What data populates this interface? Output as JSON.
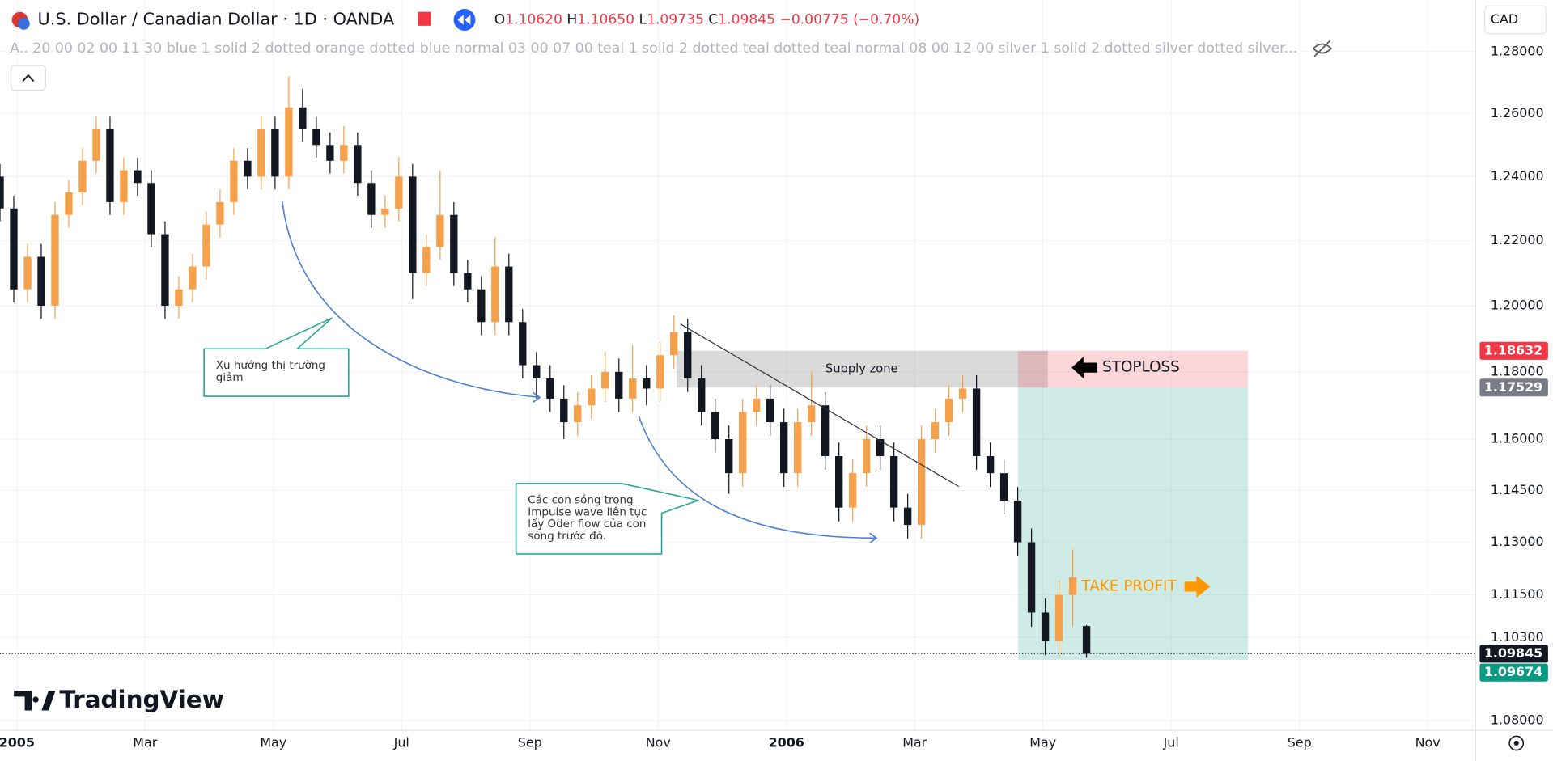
{
  "header": {
    "symbol": "U.S. Dollar / Canadian Dollar · 1D · OANDA",
    "ohlc": [
      {
        "key": "O",
        "value": "1.10620"
      },
      {
        "key": "H",
        "value": "1.10650"
      },
      {
        "key": "L",
        "value": "1.09735"
      },
      {
        "key": "C",
        "value": "1.09845"
      }
    ],
    "change": "−0.00775 (−0.70%)",
    "indicator": "A.. 20 00 02 00 11 30 blue 1 solid 2 dotted orange dotted blue normal 03 00 07 00 teal 1 solid 2 dotted teal dotted teal normal 08 00 12 00 silver 1 solid 2 dotted silver dotted silver...",
    "currency": "CAD"
  },
  "logo": "TradingView",
  "chart_data": {
    "type": "candlestick",
    "up_color": "#f5a04a",
    "down_color": "#131722",
    "log_scale": true,
    "grid": true,
    "ylim": [
      1.0773,
      1.2969
    ],
    "yticks": [
      {
        "value": 1.28,
        "label": "1.28000"
      },
      {
        "value": 1.26,
        "label": "1.26000"
      },
      {
        "value": 1.24,
        "label": "1.24000"
      },
      {
        "value": 1.22,
        "label": "1.22000"
      },
      {
        "value": 1.2,
        "label": "1.20000"
      },
      {
        "value": 1.18,
        "label": "1.18000"
      },
      {
        "value": 1.16,
        "label": "1.16000"
      },
      {
        "value": 1.145,
        "label": "1.14500"
      },
      {
        "value": 1.13,
        "label": "1.13000"
      },
      {
        "value": 1.115,
        "label": "1.11500"
      },
      {
        "value": 1.103,
        "label": "1.10300"
      },
      {
        "value": 1.08,
        "label": "1.08000"
      }
    ],
    "categories": [
      "2005",
      "Mar",
      "May",
      "Jul",
      "Sep",
      "Nov",
      "2006",
      "Mar",
      "May",
      "Jul",
      "Sep",
      "Nov"
    ],
    "open": [
      1.24,
      1.23,
      1.205,
      1.215,
      1.2,
      1.228,
      1.235,
      1.245,
      1.255,
      1.232,
      1.242,
      1.238,
      1.222,
      1.2,
      1.205,
      1.212,
      1.225,
      1.232,
      1.245,
      1.24,
      1.255,
      1.24,
      1.262,
      1.255,
      1.25,
      1.245,
      1.25,
      1.238,
      1.228,
      1.23,
      1.24,
      1.21,
      1.218,
      1.228,
      1.21,
      1.205,
      1.195,
      1.212,
      1.195,
      1.182,
      1.178,
      1.172,
      1.165,
      1.17,
      1.175,
      1.18,
      1.172,
      1.178,
      1.175,
      1.185,
      1.192,
      1.178,
      1.168,
      1.16,
      1.15,
      1.168,
      1.172,
      1.165,
      1.15,
      1.165,
      1.17,
      1.155,
      1.14,
      1.15,
      1.16,
      1.155,
      1.14,
      1.135,
      1.16,
      1.165,
      1.172,
      1.175,
      1.155,
      1.15,
      1.142,
      1.13,
      1.11,
      1.102,
      1.115,
      1.1062
    ],
    "high": [
      1.244,
      1.234,
      1.219,
      1.219,
      1.232,
      1.239,
      1.249,
      1.259,
      1.259,
      1.246,
      1.246,
      1.242,
      1.226,
      1.209,
      1.216,
      1.229,
      1.236,
      1.249,
      1.249,
      1.259,
      1.259,
      1.272,
      1.268,
      1.259,
      1.254,
      1.256,
      1.254,
      1.242,
      1.234,
      1.246,
      1.244,
      1.222,
      1.242,
      1.232,
      1.214,
      1.209,
      1.221,
      1.216,
      1.199,
      1.186,
      1.182,
      1.176,
      1.174,
      1.179,
      1.186,
      1.184,
      1.188,
      1.182,
      1.189,
      1.197,
      1.196,
      1.182,
      1.172,
      1.164,
      1.172,
      1.176,
      1.176,
      1.169,
      1.169,
      1.18,
      1.174,
      1.159,
      1.154,
      1.164,
      1.164,
      1.159,
      1.144,
      1.164,
      1.169,
      1.176,
      1.179,
      1.179,
      1.159,
      1.154,
      1.146,
      1.134,
      1.114,
      1.119,
      1.128,
      1.1065
    ],
    "low": [
      1.226,
      1.201,
      1.201,
      1.196,
      1.196,
      1.224,
      1.231,
      1.241,
      1.228,
      1.228,
      1.234,
      1.218,
      1.196,
      1.196,
      1.201,
      1.208,
      1.221,
      1.228,
      1.236,
      1.236,
      1.236,
      1.236,
      1.251,
      1.246,
      1.241,
      1.241,
      1.234,
      1.224,
      1.224,
      1.226,
      1.202,
      1.206,
      1.214,
      1.206,
      1.201,
      1.191,
      1.191,
      1.191,
      1.178,
      1.172,
      1.168,
      1.16,
      1.161,
      1.166,
      1.171,
      1.168,
      1.168,
      1.17,
      1.171,
      1.181,
      1.174,
      1.164,
      1.156,
      1.144,
      1.146,
      1.164,
      1.161,
      1.146,
      1.146,
      1.161,
      1.151,
      1.136,
      1.136,
      1.146,
      1.151,
      1.136,
      1.131,
      1.131,
      1.156,
      1.161,
      1.168,
      1.151,
      1.146,
      1.138,
      1.126,
      1.106,
      1.098,
      1.098,
      1.106,
      1.09735
    ],
    "close": [
      1.23,
      1.205,
      1.215,
      1.2,
      1.228,
      1.235,
      1.245,
      1.255,
      1.232,
      1.242,
      1.238,
      1.222,
      1.2,
      1.205,
      1.212,
      1.225,
      1.232,
      1.245,
      1.24,
      1.255,
      1.24,
      1.262,
      1.255,
      1.25,
      1.245,
      1.25,
      1.238,
      1.228,
      1.23,
      1.24,
      1.21,
      1.218,
      1.228,
      1.21,
      1.205,
      1.195,
      1.212,
      1.195,
      1.182,
      1.178,
      1.172,
      1.165,
      1.17,
      1.175,
      1.18,
      1.172,
      1.178,
      1.175,
      1.185,
      1.192,
      1.178,
      1.168,
      1.16,
      1.15,
      1.168,
      1.172,
      1.165,
      1.15,
      1.165,
      1.17,
      1.155,
      1.14,
      1.15,
      1.16,
      1.155,
      1.14,
      1.135,
      1.16,
      1.165,
      1.172,
      1.175,
      1.155,
      1.15,
      1.142,
      1.13,
      1.11,
      1.102,
      1.115,
      1.12,
      1.09845
    ],
    "price_tags": [
      {
        "value": 1.18632,
        "color": "#f23645"
      },
      {
        "value": 1.17529,
        "color": "#787b86"
      },
      {
        "value": 1.09845,
        "color": "#131722"
      },
      {
        "value": 1.09674,
        "color": "#089981"
      }
    ],
    "annotations": {
      "supply_zone": "Supply zone",
      "stoploss": "STOPLOSS",
      "take_profit": "TAKE PROFIT",
      "callout_1": [
        "Xu hướng thị trường",
        "giảm"
      ],
      "callout_2": [
        "Các con sóng trong",
        "Impulse wave liên tục",
        "lấy Oder flow của con",
        "sóng trước đó."
      ]
    }
  }
}
